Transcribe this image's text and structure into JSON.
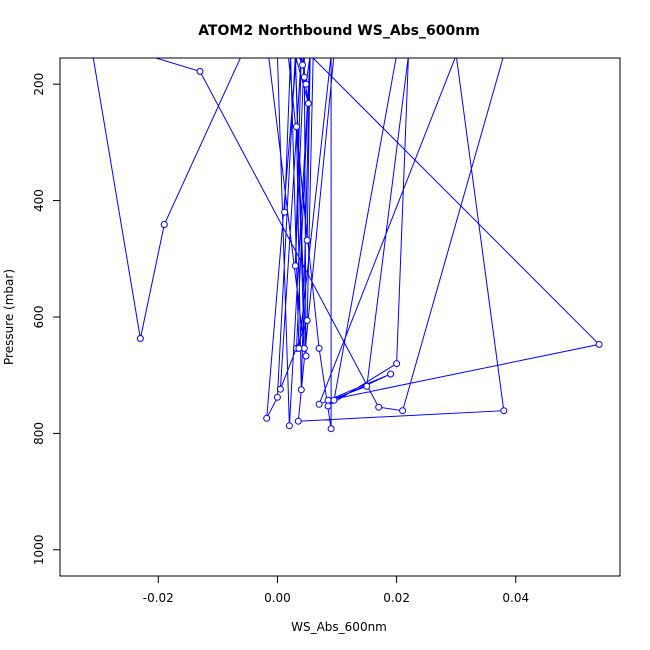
{
  "chart_data": {
    "type": "line",
    "title": "ATOM2 Northbound WS_Abs_600nm",
    "xlabel": "WS_Abs_600nm",
    "ylabel": "Pressure (mbar)",
    "xlim": [
      -0.0365,
      0.0575
    ],
    "ylim": [
      1045,
      155
    ],
    "y_reversed": true,
    "x_ticks": [
      -0.02,
      0.0,
      0.02,
      0.04
    ],
    "x_tick_labels": [
      "-0.02",
      "0.00",
      "0.02",
      "0.04"
    ],
    "y_ticks": [
      200,
      400,
      600,
      800,
      1000
    ],
    "y_tick_labels": [
      "200",
      "400",
      "600",
      "800",
      "1000"
    ],
    "series": [
      {
        "color": "#0000ff",
        "marker": "open-circle",
        "points": [
          {
            "x": -0.031,
            "y": 150
          },
          {
            "x": -0.023,
            "y": 637
          },
          {
            "x": -0.019,
            "y": 441
          },
          {
            "x": -0.006,
            "y": 150
          },
          {
            "x": -0.0015,
            "y": 150
          },
          {
            "x": 0.0045,
            "y": 654
          },
          {
            "x": 0.003,
            "y": 150
          },
          {
            "x": 0.0048,
            "y": 667
          },
          {
            "x": 0.0045,
            "y": 150
          },
          {
            "x": 0.0045,
            "y": 150
          },
          {
            "x": 0.003,
            "y": 512
          },
          {
            "x": 0.004,
            "y": 150
          },
          {
            "x": 0.0005,
            "y": 724
          },
          {
            "x": 0.005,
            "y": 606
          },
          {
            "x": 0.006,
            "y": 150
          },
          {
            "x": 0.0005,
            "y": 150
          },
          {
            "x": 0.0055,
            "y": 150
          },
          {
            "x": 0.004,
            "y": 725
          },
          {
            "x": 0.0032,
            "y": 273
          },
          {
            "x": 0.005,
            "y": 468
          },
          {
            "x": 0.0055,
            "y": 150
          },
          {
            "x": 0.0032,
            "y": 654
          },
          {
            "x": 0.0055,
            "y": 150
          },
          {
            "x": 0.0048,
            "y": 200
          },
          {
            "x": 0.004,
            "y": 150
          },
          {
            "x": 0.0045,
            "y": 150
          },
          {
            "x": 0.0045,
            "y": 188
          },
          {
            "x": 0.0052,
            "y": 233
          },
          {
            "x": 0.003,
            "y": 150
          },
          {
            "x": 0.0,
            "y": 738
          },
          {
            "x": -0.0018,
            "y": 774
          },
          {
            "x": 0.0032,
            "y": 150
          },
          {
            "x": 0.0022,
            "y": 150
          },
          {
            "x": 0.0012,
            "y": 420
          },
          {
            "x": 0.0022,
            "y": 150
          },
          {
            "x": 0.0018,
            "y": 150
          },
          {
            "x": 0.007,
            "y": 654
          },
          {
            "x": 0.009,
            "y": 792
          },
          {
            "x": 0.009,
            "y": 150
          },
          {
            "x": 0.0036,
            "y": 654
          },
          {
            "x": 0.0022,
            "y": 150
          },
          {
            "x": 0.0045,
            "y": 150
          },
          {
            "x": 0.0042,
            "y": 167
          },
          {
            "x": 0.0035,
            "y": 150
          },
          {
            "x": 0.0036,
            "y": 150
          },
          {
            "x": -0.022,
            "y": 150
          },
          {
            "x": -0.013,
            "y": 178
          },
          {
            "x": 0.017,
            "y": 755
          },
          {
            "x": 0.021,
            "y": 761
          },
          {
            "x": 0.038,
            "y": 150
          },
          {
            "x": 0.02,
            "y": 150
          },
          {
            "x": 0.0095,
            "y": 743
          },
          {
            "x": 0.019,
            "y": 698
          },
          {
            "x": 0.0085,
            "y": 743
          },
          {
            "x": 0.054,
            "y": 647
          },
          {
            "x": 0.0055,
            "y": 150
          },
          {
            "x": 0.002,
            "y": 787
          },
          {
            "x": 0.0,
            "y": 150
          },
          {
            "x": 0.002,
            "y": 150
          },
          {
            "x": 0.0035,
            "y": 150
          },
          {
            "x": 0.0,
            "y": 150
          },
          {
            "x": 0.0095,
            "y": 150
          },
          {
            "x": 0.0035,
            "y": 779
          },
          {
            "x": 0.038,
            "y": 761
          },
          {
            "x": 0.03,
            "y": 150
          },
          {
            "x": 0.007,
            "y": 750
          },
          {
            "x": 0.015,
            "y": 719
          },
          {
            "x": 0.022,
            "y": 150
          },
          {
            "x": 0.02,
            "y": 680
          },
          {
            "x": 0.0085,
            "y": 753
          }
        ]
      }
    ]
  }
}
